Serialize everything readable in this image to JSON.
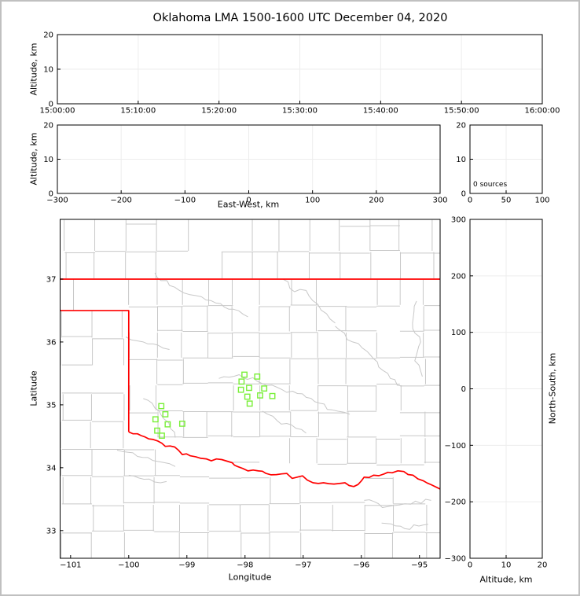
{
  "title": "Oklahoma LMA 1500-1600 UTC December 04, 2020",
  "colors": {
    "state_border": "#ff0000",
    "county_lines": "#c8c8c8",
    "rivers": "#c8c8c8",
    "stations": "#79ef38",
    "gridlines": "#ededed",
    "axis": "#000000",
    "text": "#000000",
    "figure_frame": "#c0c0c0",
    "background": "#ffffff"
  },
  "chart_data": {
    "time_height": {
      "type": "scatter",
      "ylabel": "Altitude, km",
      "ylim": [
        0,
        20
      ],
      "yticks": [
        "0",
        "10",
        "20"
      ],
      "xticks": [
        "15:00:00",
        "15:10:00",
        "15:20:00",
        "15:30:00",
        "15:40:00",
        "15:50:00",
        "16:00:00"
      ],
      "points": []
    },
    "ew_height": {
      "type": "scatter",
      "xlabel": "East-West, km",
      "ylabel": "Altitude, km",
      "xlim": [
        -300,
        300
      ],
      "xticks": [
        "−300",
        "−200",
        "−100",
        "0",
        "100",
        "200",
        "300"
      ],
      "ylim": [
        0,
        20
      ],
      "yticks": [
        "0",
        "10",
        "20"
      ],
      "points": []
    },
    "source_count": {
      "type": "histogram",
      "annotation": "0 sources",
      "xlim": [
        0,
        100
      ],
      "xticks": [
        "0",
        "50",
        "100"
      ],
      "ylim": [
        0,
        20
      ],
      "yticks": [
        "0",
        "10",
        "20"
      ],
      "points": []
    },
    "plan_view": {
      "type": "map-scatter",
      "xlabel": "Longitude",
      "ylabel": "Latitude",
      "xlim": [
        -101.18,
        -94.645
      ],
      "xticks": [
        "−101",
        "−100",
        "−99",
        "−98",
        "−97",
        "−96",
        "−95"
      ],
      "xtick_values": [
        -101,
        -100,
        -99,
        -98,
        -97,
        -96,
        -95
      ],
      "ylim": [
        32.56,
        37.95
      ],
      "yticks": [
        "33",
        "34",
        "35",
        "36",
        "37"
      ],
      "ytick_values": [
        33,
        34,
        35,
        36,
        37
      ],
      "stations": [
        [
          -98.01,
          35.48
        ],
        [
          -97.79,
          35.45
        ],
        [
          -98.06,
          35.37
        ],
        [
          -98.07,
          35.24
        ],
        [
          -97.93,
          35.27
        ],
        [
          -97.67,
          35.26
        ],
        [
          -97.96,
          35.13
        ],
        [
          -97.74,
          35.15
        ],
        [
          -97.53,
          35.14
        ],
        [
          -97.92,
          35.02
        ],
        [
          -99.44,
          34.98
        ],
        [
          -99.37,
          34.85
        ],
        [
          -99.54,
          34.77
        ],
        [
          -99.33,
          34.69
        ],
        [
          -99.08,
          34.7
        ],
        [
          -99.51,
          34.59
        ],
        [
          -99.43,
          34.51
        ]
      ],
      "state_border": {
        "north_lat": 37.0,
        "panhandle_lat": 36.5,
        "west_lon": -100.0,
        "red_river": [
          [
            -100.0,
            34.57
          ],
          [
            -99.85,
            34.54
          ],
          [
            -99.72,
            34.49
          ],
          [
            -99.58,
            34.45
          ],
          [
            -99.37,
            34.34
          ],
          [
            -99.21,
            34.33
          ],
          [
            -99.08,
            34.21
          ],
          [
            -98.94,
            34.19
          ],
          [
            -98.76,
            34.15
          ],
          [
            -98.58,
            34.11
          ],
          [
            -98.4,
            34.13
          ],
          [
            -98.22,
            34.08
          ],
          [
            -98.13,
            34.02
          ],
          [
            -97.95,
            33.95
          ],
          [
            -97.77,
            33.95
          ],
          [
            -97.64,
            33.91
          ],
          [
            -97.46,
            33.89
          ],
          [
            -97.28,
            33.91
          ],
          [
            -97.19,
            33.83
          ],
          [
            -97.01,
            33.87
          ],
          [
            -96.83,
            33.76
          ],
          [
            -96.65,
            33.76
          ],
          [
            -96.47,
            33.74
          ],
          [
            -96.28,
            33.76
          ],
          [
            -96.13,
            33.7
          ],
          [
            -95.95,
            33.85
          ],
          [
            -95.79,
            33.88
          ],
          [
            -95.61,
            33.9
          ],
          [
            -95.47,
            33.92
          ],
          [
            -95.27,
            33.94
          ],
          [
            -95.11,
            33.88
          ],
          [
            -94.93,
            33.79
          ],
          [
            -94.8,
            33.73
          ],
          [
            -94.645,
            33.66
          ]
        ]
      },
      "rivers": [
        [
          [
            -99.55,
            37.1
          ],
          [
            -99.3,
            36.9
          ],
          [
            -99.05,
            36.78
          ],
          [
            -98.75,
            36.72
          ],
          [
            -98.5,
            36.62
          ],
          [
            -98.2,
            36.52
          ],
          [
            -97.95,
            36.4
          ]
        ],
        [
          [
            -100.05,
            36.08
          ],
          [
            -99.75,
            36.0
          ],
          [
            -99.5,
            35.95
          ],
          [
            -99.3,
            35.88
          ]
        ],
        [
          [
            -97.35,
            37.0
          ],
          [
            -97.15,
            36.8
          ],
          [
            -96.95,
            36.82
          ],
          [
            -96.75,
            36.6
          ],
          [
            -96.6,
            36.45
          ],
          [
            -96.45,
            36.3
          ]
        ],
        [
          [
            -96.45,
            36.25
          ],
          [
            -96.15,
            36.0
          ],
          [
            -95.9,
            35.85
          ],
          [
            -95.7,
            35.6
          ],
          [
            -95.5,
            35.42
          ],
          [
            -95.3,
            35.3
          ]
        ],
        [
          [
            -95.05,
            36.65
          ],
          [
            -95.12,
            36.3
          ],
          [
            -94.98,
            36.0
          ],
          [
            -95.08,
            35.7
          ],
          [
            -94.95,
            35.45
          ]
        ],
        [
          [
            -98.45,
            35.42
          ],
          [
            -98.1,
            35.48
          ],
          [
            -97.8,
            35.38
          ],
          [
            -97.45,
            35.28
          ],
          [
            -97.1,
            35.18
          ],
          [
            -96.8,
            35.05
          ],
          [
            -96.5,
            34.92
          ],
          [
            -96.2,
            34.85
          ]
        ],
        [
          [
            -99.75,
            35.1
          ],
          [
            -99.55,
            34.95
          ],
          [
            -99.4,
            34.78
          ],
          [
            -99.28,
            34.62
          ],
          [
            -99.2,
            34.48
          ]
        ],
        [
          [
            -97.7,
            34.9
          ],
          [
            -97.45,
            34.75
          ],
          [
            -97.2,
            34.68
          ],
          [
            -96.95,
            34.55
          ]
        ],
        [
          [
            -100.2,
            34.28
          ],
          [
            -99.85,
            34.18
          ],
          [
            -99.5,
            34.1
          ],
          [
            -99.2,
            34.02
          ]
        ],
        [
          [
            -100.0,
            33.88
          ],
          [
            -99.65,
            33.82
          ],
          [
            -99.35,
            33.78
          ]
        ],
        [
          [
            -95.95,
            33.48
          ],
          [
            -95.55,
            33.38
          ],
          [
            -95.15,
            33.42
          ],
          [
            -94.8,
            33.48
          ]
        ],
        [
          [
            -95.65,
            33.12
          ],
          [
            -95.25,
            33.03
          ],
          [
            -94.85,
            33.1
          ]
        ]
      ]
    },
    "ns_height": {
      "type": "scatter",
      "xlabel": "Altitude, km",
      "ylabel": "North-South, km",
      "xlim": [
        0,
        20
      ],
      "xticks": [
        "0",
        "10",
        "20"
      ],
      "ylim": [
        -300,
        300
      ],
      "yticks": [
        "300",
        "200",
        "100",
        "0",
        "−100",
        "−200",
        "−300"
      ],
      "ytick_values": [
        300,
        200,
        100,
        0,
        -100,
        -200,
        -300
      ],
      "points": []
    }
  }
}
